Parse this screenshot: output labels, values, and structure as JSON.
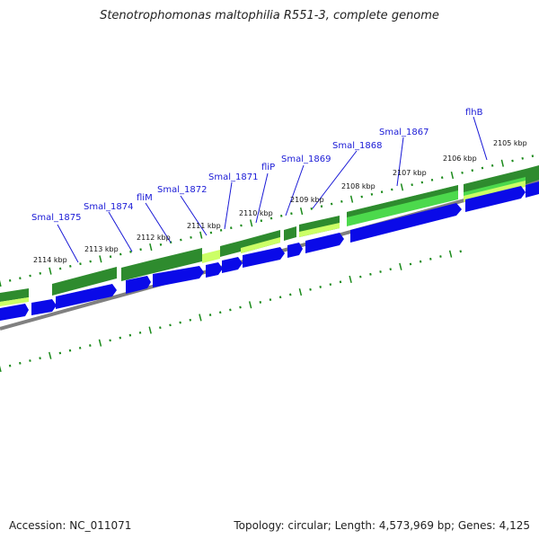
{
  "title": "Stenotrophomonas maltophilia R551-3, complete genome",
  "footer": {
    "accession": "Accession: NC_011071",
    "summary": "Topology: circular; Length: 4,573,969 bp; Genes: 4,125"
  },
  "colors": {
    "forward_cds": "#0a0ae8",
    "gene_dark": "#2e8b2e",
    "gene_light": "#4cd94c",
    "gene_yellow": "#ccff66",
    "backbone": "#808080",
    "tick": "#1a8a1a",
    "label": "#1a1ad6"
  },
  "kbp_labels": [
    "2114 kbp",
    "2113 kbp",
    "2112 kbp",
    "2111 kbp",
    "2110 kbp",
    "2109 kbp",
    "2108 kbp",
    "2107 kbp",
    "2106 kbp",
    "2105 kbp"
  ],
  "gene_labels": [
    "Smal_1875",
    "Smal_1874",
    "fliM",
    "Smal_1872",
    "Smal_1871",
    "fliP",
    "Smal_1869",
    "Smal_1868",
    "Smal_1867",
    "flhB"
  ]
}
